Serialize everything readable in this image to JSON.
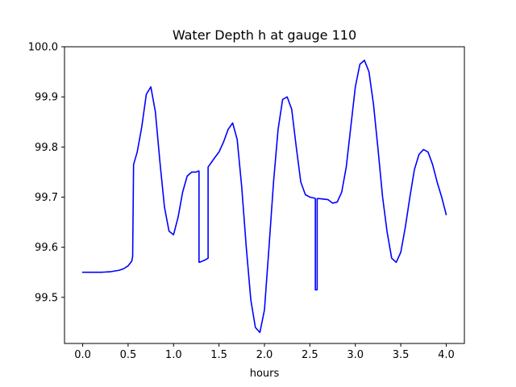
{
  "chart_data": {
    "type": "line",
    "title": "Water Depth h at gauge 110",
    "xlabel": "hours",
    "ylabel": "",
    "xlim": [
      -0.2,
      4.2
    ],
    "ylim": [
      99.408,
      100.0
    ],
    "xticks": [
      0.0,
      0.5,
      1.0,
      1.5,
      2.0,
      2.5,
      3.0,
      3.5,
      4.0
    ],
    "xtick_labels": [
      "0.0",
      "0.5",
      "1.0",
      "1.5",
      "2.0",
      "2.5",
      "3.0",
      "3.5",
      "4.0"
    ],
    "yticks": [
      99.5,
      99.6,
      99.7,
      99.8,
      99.9,
      100.0
    ],
    "ytick_labels": [
      "99.5",
      "99.6",
      "99.7",
      "99.8",
      "99.9",
      "100.0"
    ],
    "grid": false,
    "series": [
      {
        "color": "#0000ff",
        "x": [
          0.0,
          0.1,
          0.2,
          0.3,
          0.4,
          0.45,
          0.5,
          0.54,
          0.55,
          0.56,
          0.6,
          0.65,
          0.7,
          0.75,
          0.8,
          0.85,
          0.9,
          0.95,
          1.0,
          1.05,
          1.1,
          1.15,
          1.2,
          1.25,
          1.27,
          1.28,
          1.28,
          1.3,
          1.35,
          1.38,
          1.38,
          1.45,
          1.5,
          1.55,
          1.6,
          1.65,
          1.7,
          1.75,
          1.8,
          1.85,
          1.9,
          1.95,
          2.0,
          2.05,
          2.1,
          2.15,
          2.2,
          2.25,
          2.3,
          2.35,
          2.4,
          2.45,
          2.5,
          2.55,
          2.56,
          2.56,
          2.58,
          2.58,
          2.6,
          2.65,
          2.7,
          2.75,
          2.8,
          2.85,
          2.9,
          2.95,
          3.0,
          3.05,
          3.1,
          3.15,
          3.2,
          3.25,
          3.3,
          3.35,
          3.4,
          3.45,
          3.5,
          3.55,
          3.6,
          3.65,
          3.7,
          3.75,
          3.8,
          3.85,
          3.9,
          3.95,
          4.0
        ],
        "y": [
          99.55,
          99.55,
          99.55,
          99.551,
          99.554,
          99.557,
          99.563,
          99.572,
          99.582,
          99.765,
          99.79,
          99.84,
          99.905,
          99.92,
          99.87,
          99.77,
          99.68,
          99.632,
          99.625,
          99.66,
          99.71,
          99.742,
          99.75,
          99.75,
          99.752,
          99.752,
          99.57,
          99.571,
          99.575,
          99.578,
          99.76,
          99.778,
          99.79,
          99.81,
          99.835,
          99.848,
          99.815,
          99.72,
          99.6,
          99.495,
          99.44,
          99.43,
          99.475,
          99.6,
          99.73,
          99.835,
          99.895,
          99.9,
          99.875,
          99.8,
          99.73,
          99.705,
          99.7,
          99.698,
          99.697,
          99.515,
          99.515,
          99.697,
          99.697,
          99.696,
          99.695,
          99.688,
          99.69,
          99.71,
          99.76,
          99.84,
          99.92,
          99.965,
          99.973,
          99.95,
          99.885,
          99.795,
          99.7,
          99.63,
          99.578,
          99.57,
          99.59,
          99.64,
          99.7,
          99.755,
          99.785,
          99.795,
          99.79,
          99.765,
          99.73,
          99.7,
          99.665
        ]
      }
    ]
  }
}
